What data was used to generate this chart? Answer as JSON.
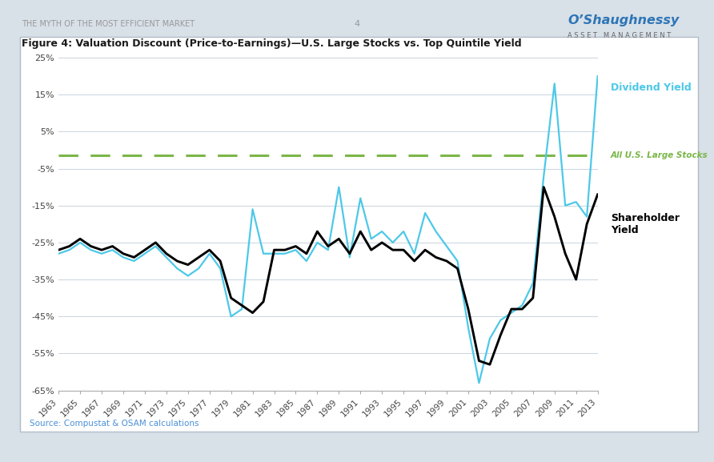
{
  "title": "Figure 4: Valuation Discount (Price-to-Earnings)—U.S. Large Stocks vs. Top Quintile Yield",
  "header_left": "THE MYTH OF THE MOST EFFICIENT MARKET",
  "header_page": "4",
  "source": "Source: Compustat & OSAM calculations",
  "ylim": [
    -65,
    25
  ],
  "yticks": [
    -65,
    -55,
    -45,
    -35,
    -25,
    -15,
    -5,
    5,
    15,
    25
  ],
  "ytick_labels": [
    "-65%",
    "-55%",
    "-45%",
    "-35%",
    "-25%",
    "-15%",
    "-5%",
    "5%",
    "15%",
    "25%"
  ],
  "xtick_labels": [
    "1963",
    "1965",
    "1967",
    "1969",
    "1971",
    "1973",
    "1975",
    "1977",
    "1979",
    "1981",
    "1983",
    "1985",
    "1987",
    "1989",
    "1991",
    "1993",
    "1995",
    "1997",
    "1999",
    "2001",
    "2003",
    "2005",
    "2007",
    "2009",
    "2011",
    "2013"
  ],
  "hline_value": -1.5,
  "hline_color": "#7ab648",
  "hline_label": "All U.S. Large Stocks",
  "line_shareholder_color": "#000000",
  "line_dividend_color": "#4dc8e8",
  "label_dividend": "Dividend Yield",
  "label_shareholder": "Shareholder\nYield",
  "outer_bg": "#d8e0e8",
  "years": [
    1963,
    1964,
    1965,
    1966,
    1967,
    1968,
    1969,
    1970,
    1971,
    1972,
    1973,
    1974,
    1975,
    1976,
    1977,
    1978,
    1979,
    1980,
    1981,
    1982,
    1983,
    1984,
    1985,
    1986,
    1987,
    1988,
    1989,
    1990,
    1991,
    1992,
    1993,
    1994,
    1995,
    1996,
    1997,
    1998,
    1999,
    2000,
    2001,
    2002,
    2003,
    2004,
    2005,
    2006,
    2007,
    2008,
    2009,
    2010,
    2011,
    2012,
    2013
  ],
  "shareholder_yield": [
    -27,
    -26,
    -24,
    -26,
    -27,
    -26,
    -28,
    -29,
    -27,
    -25,
    -28,
    -30,
    -31,
    -29,
    -27,
    -30,
    -40,
    -42,
    -44,
    -41,
    -27,
    -27,
    -26,
    -28,
    -22,
    -26,
    -24,
    -28,
    -22,
    -27,
    -25,
    -27,
    -27,
    -30,
    -27,
    -29,
    -30,
    -32,
    -43,
    -57,
    -58,
    -50,
    -43,
    -43,
    -40,
    -10,
    -18,
    -28,
    -35,
    -20,
    -12
  ],
  "dividend_yield": [
    -28,
    -27,
    -25,
    -27,
    -28,
    -27,
    -29,
    -30,
    -28,
    -26,
    -29,
    -32,
    -34,
    -32,
    -28,
    -32,
    -45,
    -43,
    -16,
    -28,
    -28,
    -28,
    -27,
    -30,
    -25,
    -27,
    -10,
    -29,
    -13,
    -24,
    -22,
    -25,
    -22,
    -28,
    -17,
    -22,
    -26,
    -30,
    -48,
    -63,
    -51,
    -46,
    -44,
    -42,
    -36,
    -7,
    18,
    -15,
    -14,
    -18,
    20
  ]
}
